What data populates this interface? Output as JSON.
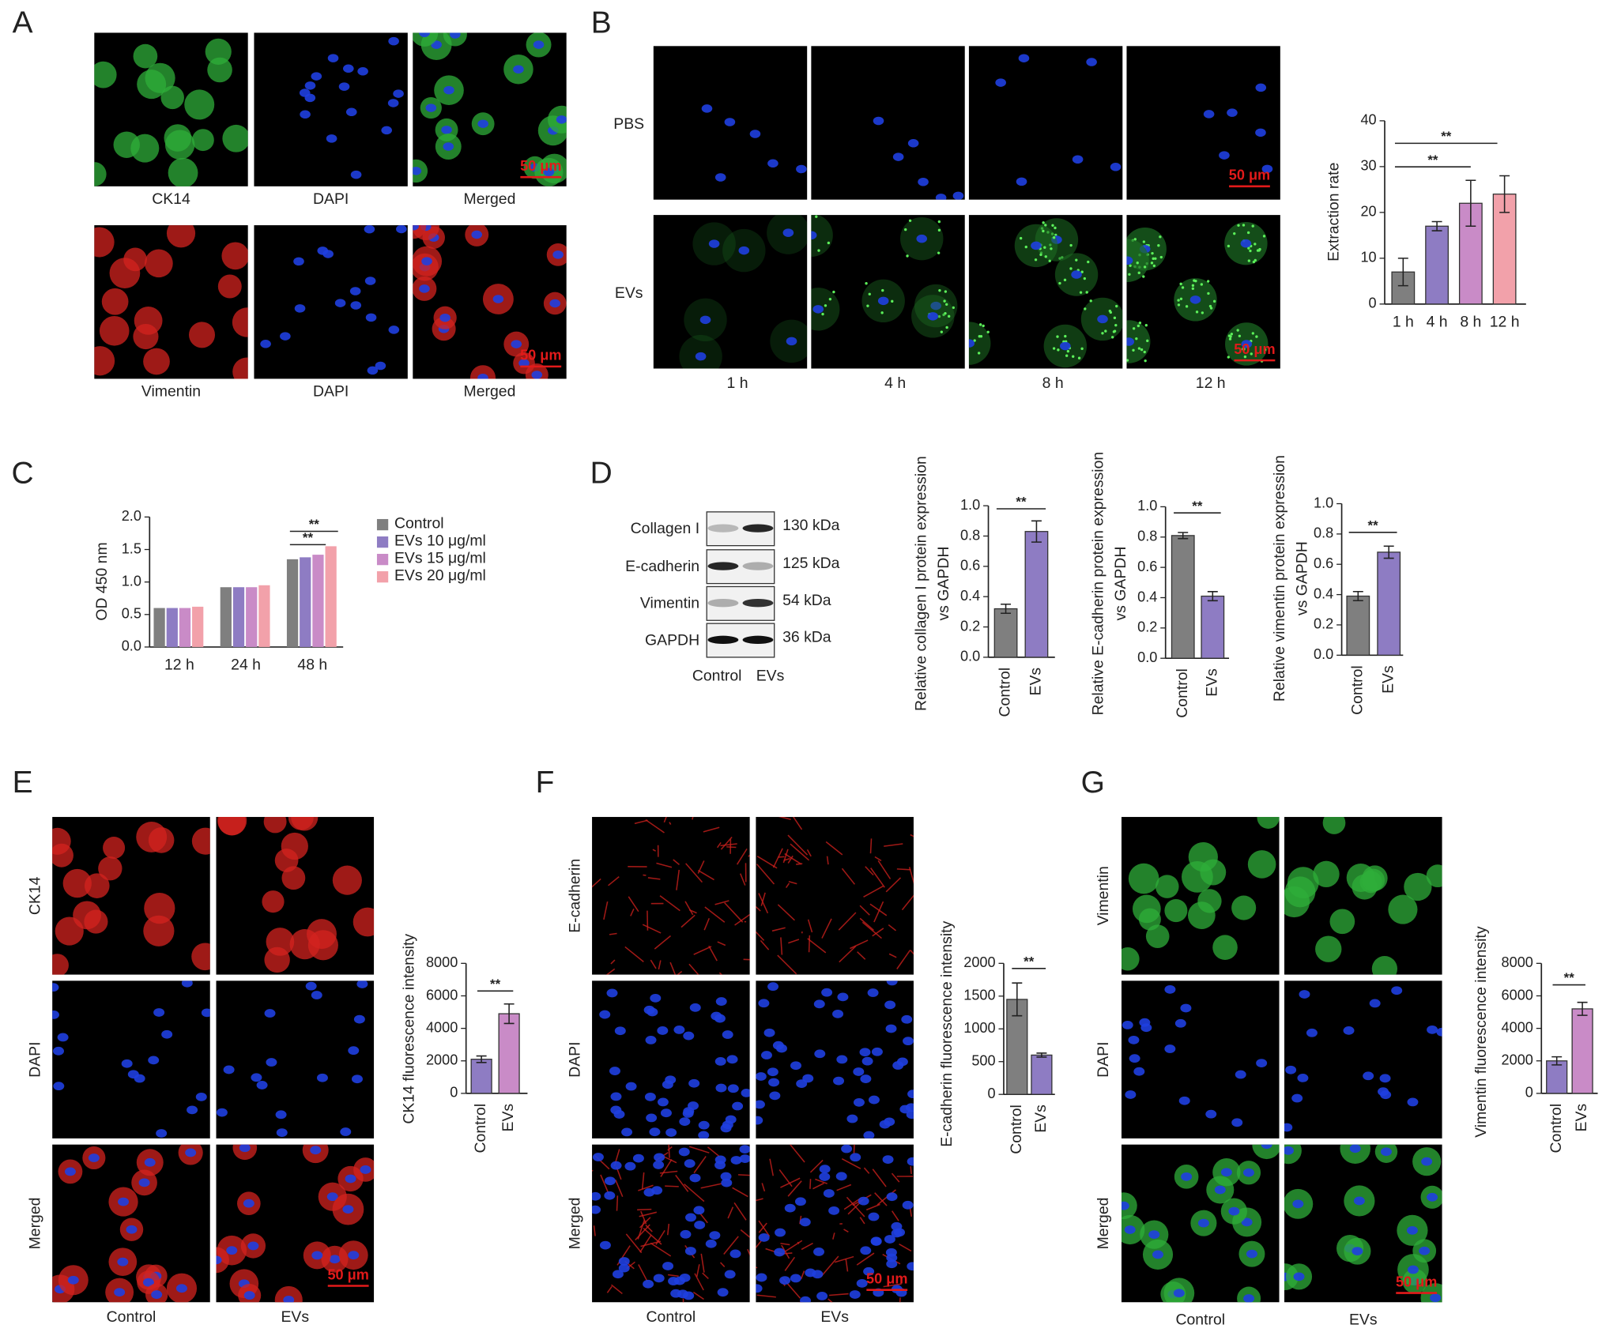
{
  "panels": {
    "A": {
      "label": "A",
      "captions": [
        "CK14",
        "DAPI",
        "Merged",
        "Vimentin",
        "DAPI",
        "Merged"
      ],
      "scale_bars": [
        "50 μm",
        "50 μm"
      ]
    },
    "B": {
      "label": "B",
      "rows": [
        "PBS",
        "EVs"
      ],
      "columns": [
        "1 h",
        "4 h",
        "8 h",
        "12 h"
      ],
      "scale_bars": [
        "50 μm",
        "50 μm"
      ]
    },
    "C": {
      "label": "C"
    },
    "D": {
      "label": "D",
      "bands": [
        "Collagen I",
        "E-cadherin",
        "Vimentin",
        "GAPDH"
      ],
      "sizes": [
        "130 kDa",
        "125 kDa",
        "54 kDa",
        "36 kDa"
      ],
      "lanes": [
        "Control",
        "EVs"
      ]
    },
    "E": {
      "label": "E",
      "rows": [
        "CK14",
        "DAPI",
        "Merged"
      ],
      "columns": [
        "Control",
        "EVs"
      ],
      "scale_bars": [
        "50 μm"
      ]
    },
    "F": {
      "label": "F",
      "rows": [
        "E-cadherin",
        "DAPI",
        "Merged"
      ],
      "columns": [
        "Control",
        "EVs"
      ],
      "scale_bars": [
        "50 μm"
      ]
    },
    "G": {
      "label": "G",
      "rows": [
        "Vimentin",
        "DAPI",
        "Merged"
      ],
      "columns": [
        "Control",
        "EVs"
      ],
      "scale_bars": [
        "50 μm"
      ]
    }
  },
  "chart_data": [
    {
      "type": "bar",
      "ylabel": [
        "Extraction rate"
      ],
      "categories": [
        "1 h",
        "4 h",
        "8 h",
        "12 h"
      ],
      "values": [
        7,
        17,
        22,
        24
      ],
      "errors": [
        3,
        1,
        5,
        4
      ],
      "colors": [
        "#7f7f7f",
        "#8e7cc3",
        "#c98bc7",
        "#f2a1aa"
      ],
      "ylim": [
        0,
        40
      ],
      "yticks": [
        0,
        10,
        20,
        30,
        40
      ],
      "annotations": [
        "**",
        "**"
      ]
    },
    {
      "type": "grouped_bar",
      "ylabel": [
        "OD 450 nm"
      ],
      "categories": [
        "12 h",
        "24 h",
        "48 h"
      ],
      "series": [
        {
          "name": "Control",
          "color": "#7f7f7f",
          "values": [
            0.6,
            0.92,
            1.35
          ]
        },
        {
          "name": "EVs 10 μg/ml",
          "color": "#8e7cc3",
          "values": [
            0.6,
            0.92,
            1.38
          ]
        },
        {
          "name": "EVs 15 μg/ml",
          "color": "#c98bc7",
          "values": [
            0.6,
            0.92,
            1.42
          ]
        },
        {
          "name": "EVs 20 μg/ml",
          "color": "#f2a1aa",
          "values": [
            0.62,
            0.95,
            1.55
          ]
        }
      ],
      "ylim": [
        0,
        2
      ],
      "yticks": [
        {
          "value": 0,
          "label": "0.0"
        },
        0.5,
        {
          "value": 1,
          "label": "1.0"
        },
        1.5,
        {
          "value": 2,
          "label": "2.0"
        }
      ],
      "annotations": [
        "**",
        "**"
      ]
    },
    {
      "type": "bar",
      "ylabel": [
        "Relative collagen I protein expression",
        "vs GAPDH"
      ],
      "categories": [
        "Control",
        "EVs"
      ],
      "values": [
        0.32,
        0.83
      ],
      "errors": [
        0.03,
        0.07
      ],
      "colors": [
        "#7f7f7f",
        "#8e7cc3"
      ],
      "ylim": [
        0,
        1
      ],
      "yticks": [
        {
          "value": 0,
          "label": "0.0"
        },
        0.2,
        0.4,
        0.6,
        0.8,
        {
          "value": 1,
          "label": "1.0"
        }
      ],
      "annotations": [
        "**"
      ]
    },
    {
      "type": "bar",
      "ylabel": [
        "Relative E-cadherin protein expression",
        "vs GAPDH"
      ],
      "categories": [
        "Control",
        "EVs"
      ],
      "values": [
        0.81,
        0.41
      ],
      "errors": [
        0.02,
        0.03
      ],
      "colors": [
        "#7f7f7f",
        "#8e7cc3"
      ],
      "ylim": [
        0,
        1
      ],
      "yticks": [
        {
          "value": 0,
          "label": "0.0"
        },
        0.2,
        0.4,
        0.6,
        0.8,
        {
          "value": 1,
          "label": "1.0"
        }
      ],
      "annotations": [
        "**"
      ]
    },
    {
      "type": "bar",
      "ylabel": [
        "Relative vimentin protein expression",
        "vs GAPDH"
      ],
      "categories": [
        "Control",
        "EVs"
      ],
      "values": [
        0.39,
        0.68
      ],
      "errors": [
        0.03,
        0.04
      ],
      "colors": [
        "#7f7f7f",
        "#8e7cc3"
      ],
      "ylim": [
        0,
        1
      ],
      "yticks": [
        {
          "value": 0,
          "label": "0.0"
        },
        0.2,
        0.4,
        0.6,
        0.8,
        {
          "value": 1,
          "label": "1.0"
        }
      ],
      "annotations": [
        "**"
      ]
    },
    {
      "type": "bar",
      "ylabel": [
        "CK14 fluorescence intensity"
      ],
      "categories": [
        "Control",
        "EVs"
      ],
      "values": [
        2100,
        4900
      ],
      "errors": [
        200,
        600
      ],
      "colors": [
        "#8e7cc3",
        "#c98bc7"
      ],
      "ylim": [
        0,
        8000
      ],
      "yticks": [
        0,
        2000,
        4000,
        6000,
        8000
      ],
      "annotations": [
        "**"
      ]
    },
    {
      "type": "bar",
      "ylabel": [
        "E-cadherin fluorescence intensity"
      ],
      "categories": [
        "Control",
        "EVs"
      ],
      "values": [
        1450,
        600
      ],
      "errors": [
        250,
        30
      ],
      "colors": [
        "#7f7f7f",
        "#8e7cc3"
      ],
      "ylim": [
        0,
        2000
      ],
      "yticks": [
        0,
        500,
        1000,
        1500,
        2000
      ],
      "annotations": [
        "**"
      ]
    },
    {
      "type": "bar",
      "ylabel": [
        "Vimentin fluorescence intensity"
      ],
      "categories": [
        "Control",
        "EVs"
      ],
      "values": [
        2000,
        5200
      ],
      "errors": [
        250,
        400
      ],
      "colors": [
        "#8e7cc3",
        "#c98bc7"
      ],
      "ylim": [
        0,
        8000
      ],
      "yticks": [
        0,
        2000,
        4000,
        6000,
        8000
      ],
      "annotations": [
        "**"
      ]
    }
  ]
}
